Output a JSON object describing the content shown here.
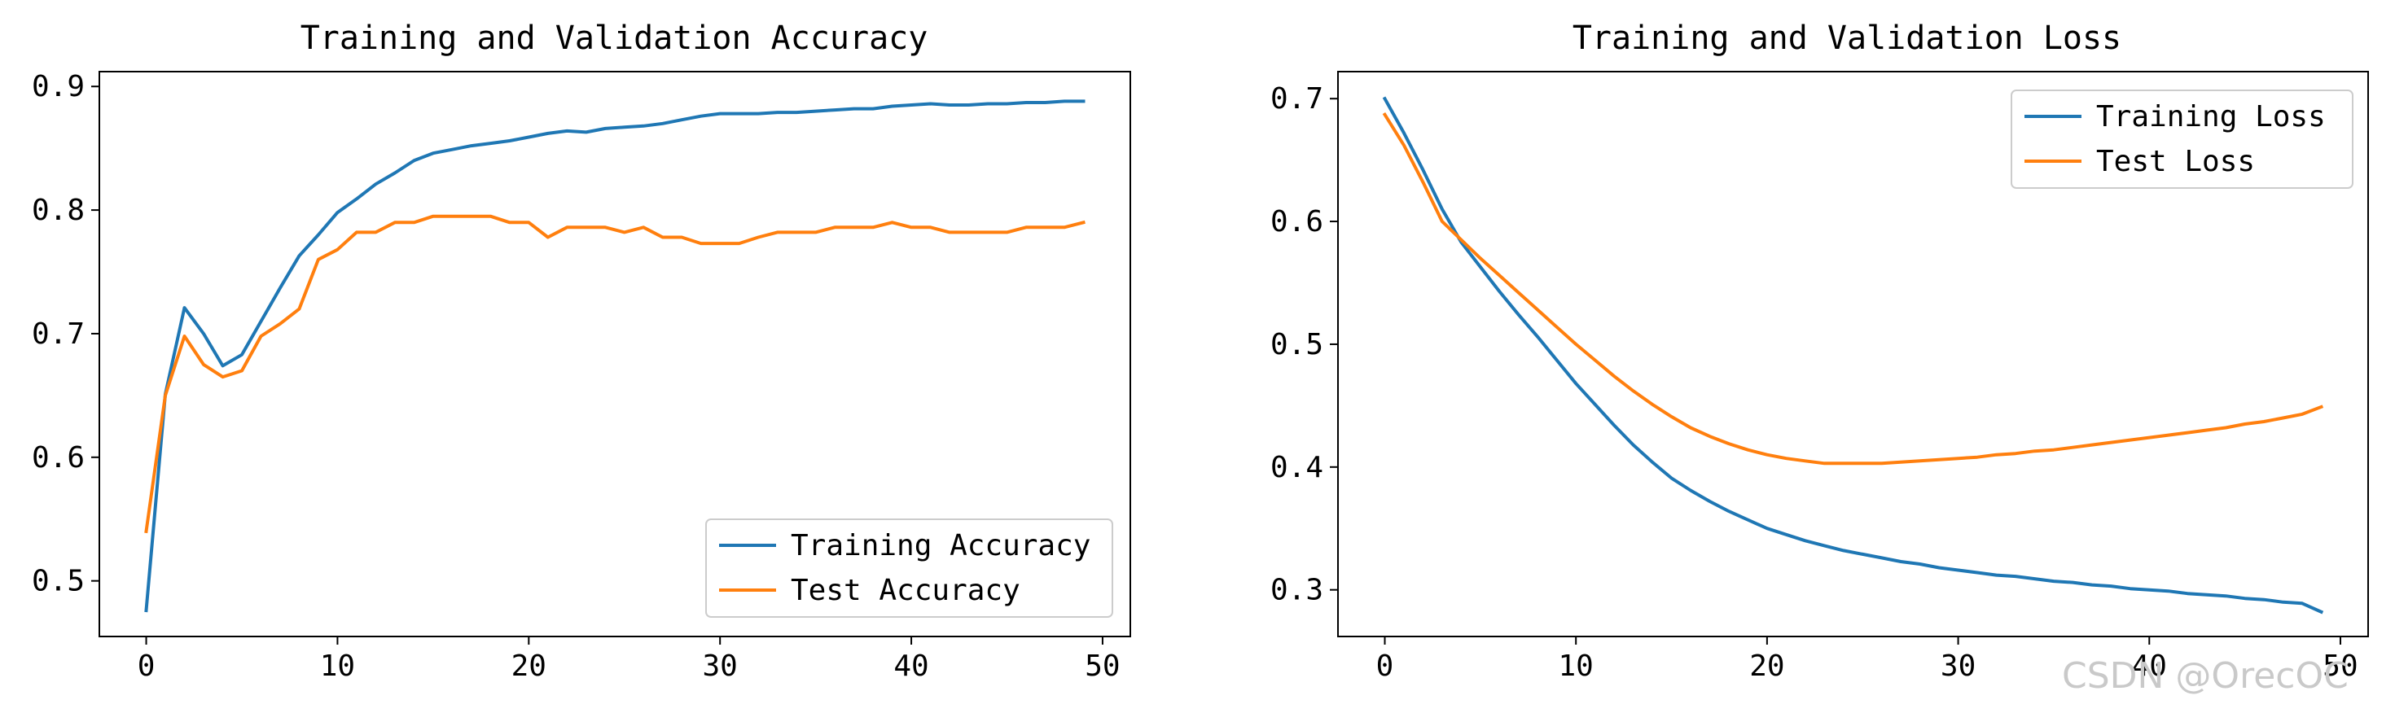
{
  "watermark": "CSDN @OrecOC",
  "chart_data": [
    {
      "type": "line",
      "title": "Training and Validation Accuracy",
      "xlabel": "",
      "ylabel": "",
      "xlim": [
        -2.45,
        51.45
      ],
      "ylim": [
        0.455,
        0.912
      ],
      "xticks": [
        0,
        10,
        20,
        30,
        40,
        50
      ],
      "yticks": [
        0.5,
        0.6,
        0.7,
        0.8,
        0.9
      ],
      "xtick_labels": [
        "0",
        "10",
        "20",
        "30",
        "40",
        "50"
      ],
      "ytick_labels": [
        "0.5",
        "0.6",
        "0.7",
        "0.8",
        "0.9"
      ],
      "grid": false,
      "legend_position": "lower-right",
      "x": [
        0,
        1,
        2,
        3,
        4,
        5,
        6,
        7,
        8,
        9,
        10,
        11,
        12,
        13,
        14,
        15,
        16,
        17,
        18,
        19,
        20,
        21,
        22,
        23,
        24,
        25,
        26,
        27,
        28,
        29,
        30,
        31,
        32,
        33,
        34,
        35,
        36,
        37,
        38,
        39,
        40,
        41,
        42,
        43,
        44,
        45,
        46,
        47,
        48,
        49
      ],
      "series": [
        {
          "name": "Training Accuracy",
          "color": "#1f77b4",
          "values": [
            0.476,
            0.651,
            0.721,
            0.7,
            0.674,
            0.683,
            0.71,
            0.737,
            0.763,
            0.78,
            0.798,
            0.809,
            0.821,
            0.83,
            0.84,
            0.846,
            0.849,
            0.852,
            0.854,
            0.856,
            0.859,
            0.862,
            0.864,
            0.863,
            0.866,
            0.867,
            0.868,
            0.87,
            0.873,
            0.876,
            0.878,
            0.878,
            0.878,
            0.879,
            0.879,
            0.88,
            0.881,
            0.882,
            0.882,
            0.884,
            0.885,
            0.886,
            0.885,
            0.885,
            0.886,
            0.886,
            0.887,
            0.887,
            0.888,
            0.888
          ]
        },
        {
          "name": "Test Accuracy",
          "color": "#ff7f0e",
          "values": [
            0.54,
            0.65,
            0.698,
            0.675,
            0.665,
            0.67,
            0.698,
            0.708,
            0.72,
            0.76,
            0.768,
            0.782,
            0.782,
            0.79,
            0.79,
            0.795,
            0.795,
            0.795,
            0.795,
            0.79,
            0.79,
            0.778,
            0.786,
            0.786,
            0.786,
            0.782,
            0.786,
            0.778,
            0.778,
            0.773,
            0.773,
            0.773,
            0.778,
            0.782,
            0.782,
            0.782,
            0.786,
            0.786,
            0.786,
            0.79,
            0.786,
            0.786,
            0.782,
            0.782,
            0.782,
            0.782,
            0.786,
            0.786,
            0.786,
            0.79
          ]
        }
      ]
    },
    {
      "type": "line",
      "title": "Training and Validation Loss",
      "xlabel": "",
      "ylabel": "",
      "xlim": [
        -2.45,
        51.45
      ],
      "ylim": [
        0.262,
        0.722
      ],
      "xticks": [
        0,
        10,
        20,
        30,
        40,
        50
      ],
      "yticks": [
        0.3,
        0.4,
        0.5,
        0.6,
        0.7
      ],
      "xtick_labels": [
        "0",
        "10",
        "20",
        "30",
        "40",
        "50"
      ],
      "ytick_labels": [
        "0.3",
        "0.4",
        "0.5",
        "0.6",
        "0.7"
      ],
      "grid": false,
      "legend_position": "upper-right",
      "x": [
        0,
        1,
        2,
        3,
        4,
        5,
        6,
        7,
        8,
        9,
        10,
        11,
        12,
        13,
        14,
        15,
        16,
        17,
        18,
        19,
        20,
        21,
        22,
        23,
        24,
        25,
        26,
        27,
        28,
        29,
        30,
        31,
        32,
        33,
        34,
        35,
        36,
        37,
        38,
        39,
        40,
        41,
        42,
        43,
        44,
        45,
        46,
        47,
        48,
        49
      ],
      "series": [
        {
          "name": "Training Loss",
          "color": "#1f77b4",
          "values": [
            0.7,
            0.672,
            0.642,
            0.61,
            0.583,
            0.563,
            0.543,
            0.524,
            0.506,
            0.487,
            0.468,
            0.451,
            0.434,
            0.418,
            0.404,
            0.391,
            0.381,
            0.372,
            0.364,
            0.357,
            0.35,
            0.345,
            0.34,
            0.336,
            0.332,
            0.329,
            0.326,
            0.323,
            0.321,
            0.318,
            0.316,
            0.314,
            0.312,
            0.311,
            0.309,
            0.307,
            0.306,
            0.304,
            0.303,
            0.301,
            0.3,
            0.299,
            0.297,
            0.296,
            0.295,
            0.293,
            0.292,
            0.29,
            0.289,
            0.282
          ]
        },
        {
          "name": "Test Loss",
          "color": "#ff7f0e",
          "values": [
            0.687,
            0.662,
            0.632,
            0.6,
            0.585,
            0.57,
            0.556,
            0.542,
            0.528,
            0.514,
            0.5,
            0.487,
            0.474,
            0.462,
            0.451,
            0.441,
            0.432,
            0.425,
            0.419,
            0.414,
            0.41,
            0.407,
            0.405,
            0.403,
            0.403,
            0.403,
            0.403,
            0.404,
            0.405,
            0.406,
            0.407,
            0.408,
            0.41,
            0.411,
            0.413,
            0.414,
            0.416,
            0.418,
            0.42,
            0.422,
            0.424,
            0.426,
            0.428,
            0.43,
            0.432,
            0.435,
            0.437,
            0.44,
            0.443,
            0.449
          ]
        }
      ]
    }
  ]
}
